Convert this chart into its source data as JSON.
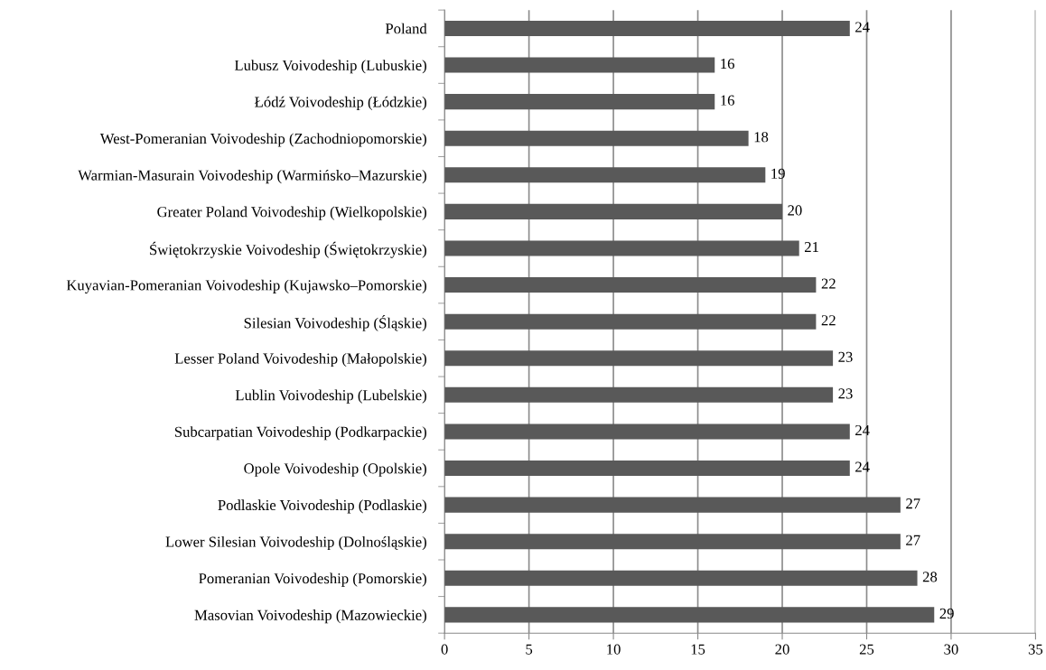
{
  "chart_data": {
    "type": "bar",
    "orientation": "horizontal",
    "categories": [
      "Poland",
      "Lubusz Voivodeship (Lubuskie)",
      "Łódź Voivodeship (Łódzkie)",
      "West-Pomeranian Voivodeship (Zachodniopomorskie)",
      "Warmian-Masurain Voivodeship (Warmińsko–Mazurskie)",
      "Greater Poland Voivodeship (Wielkopolskie)",
      "Świętokrzyskie Voivodeship (Świętokrzyskie)",
      "Kuyavian-Pomeranian Voivodeship (Kujawsko–Pomorskie)",
      "Silesian Voivodeship (Śląskie)",
      "Lesser Poland Voivodeship (Małopolskie)",
      "Lublin Voivodeship (Lubelskie)",
      "Subcarpatian Voivodeship (Podkarpackie)",
      "Opole Voivodeship (Opolskie)",
      "Podlaskie Voivodeship (Podlaskie)",
      "Lower Silesian Voivodeship (Dolnośląskie)",
      "Pomeranian Voivodeship (Pomorskie)",
      "Masovian Voivodeship (Mazowieckie)"
    ],
    "values": [
      24,
      16,
      16,
      18,
      19,
      20,
      21,
      22,
      22,
      23,
      23,
      24,
      24,
      27,
      27,
      28,
      29
    ],
    "color": "#595959",
    "xlim": [
      0,
      35
    ],
    "xticks": [
      0,
      5,
      10,
      15,
      20,
      25,
      30,
      35
    ],
    "grid": "x",
    "data_labels": true
  }
}
